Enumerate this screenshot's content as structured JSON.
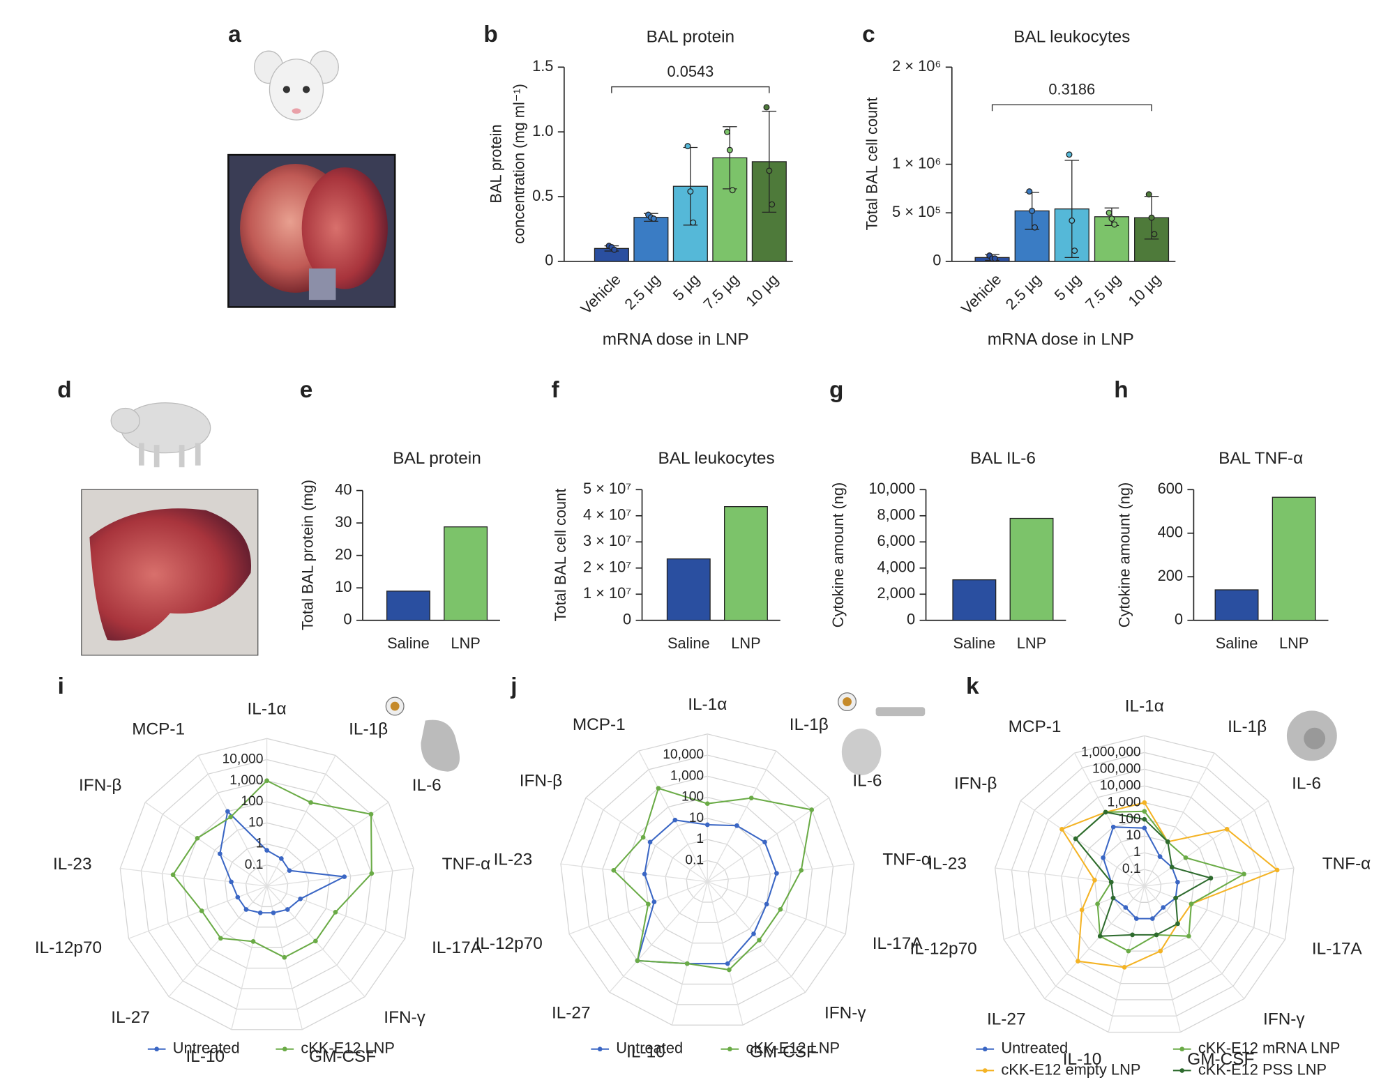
{
  "panel_letters": [
    "a",
    "b",
    "c",
    "d",
    "e",
    "f",
    "g",
    "h",
    "i",
    "j",
    "k"
  ],
  "chart_data": [
    {
      "type": "bar",
      "title": "BAL protein",
      "y_label": [
        "BAL protein",
        "concentration (mg ml⁻¹)"
      ],
      "x_label": "mRNA dose in LNP",
      "categories": [
        "Vehicle",
        "2.5 µg",
        "5 µg",
        "7.5 µg",
        "10 µg"
      ],
      "colors": [
        "#2a4fa0",
        "#3a7cc4",
        "#55b8d8",
        "#7cc36a",
        "#4e7a3a"
      ],
      "values": [
        0.1,
        0.34,
        0.58,
        0.8,
        0.77
      ],
      "errors": [
        0.02,
        0.03,
        0.3,
        0.24,
        0.39
      ],
      "points": [
        [
          0.12,
          0.11,
          0.09
        ],
        [
          0.36,
          0.34,
          0.33
        ],
        [
          0.89,
          0.54,
          0.3
        ],
        [
          1.0,
          0.86,
          0.55
        ],
        [
          1.19,
          0.7,
          0.44
        ]
      ],
      "annotation": "0.0543",
      "ylim": [
        0,
        1.5
      ],
      "yticks": [
        0,
        0.5,
        {
          "value": 1,
          "label": "1.0"
        },
        1.5
      ]
    },
    {
      "type": "bar",
      "title": "BAL leukocytes",
      "y_label": "Total BAL cell count",
      "x_label": "mRNA dose in LNP",
      "categories": [
        "Vehicle",
        "2.5 µg",
        "5 µg",
        "7.5 µg",
        "10 µg"
      ],
      "colors": [
        "#2a4fa0",
        "#3a7cc4",
        "#55b8d8",
        "#7cc36a",
        "#4e7a3a"
      ],
      "values": [
        40000,
        520000,
        540000,
        460000,
        450000
      ],
      "errors": [
        30000,
        190000,
        500000,
        90000,
        220000
      ],
      "points": [
        [
          60000,
          30000,
          30000
        ],
        [
          720000,
          520000,
          350000
        ],
        [
          1100000,
          420000,
          110000
        ],
        [
          500000,
          440000,
          380000
        ],
        [
          690000,
          450000,
          280000
        ]
      ],
      "annotation": "0.3186",
      "ylim": [
        0,
        2000000
      ],
      "yticks": [
        0,
        {
          "value": 500000,
          "label": "5 × 10⁵"
        },
        {
          "value": 1000000,
          "label": "1 × 10⁶"
        },
        {
          "value": 2000000,
          "label": "2 × 10⁶"
        }
      ]
    },
    {
      "type": "bar",
      "title": "BAL protein",
      "y_label": "Total BAL protein (mg)",
      "categories": [
        "Saline",
        "LNP"
      ],
      "colors": [
        "#2a4fa0",
        "#7cc36a"
      ],
      "values": [
        9,
        28.8
      ],
      "ylim": [
        0,
        40
      ],
      "yticks": [
        0,
        10,
        20,
        30,
        40
      ]
    },
    {
      "type": "bar",
      "title": "BAL leukocytes",
      "y_label": "Total BAL cell count",
      "categories": [
        "Saline",
        "LNP"
      ],
      "colors": [
        "#2a4fa0",
        "#7cc36a"
      ],
      "values": [
        23500000,
        43500000
      ],
      "ylim": [
        0,
        50000000
      ],
      "yticks": [
        0,
        {
          "value": 10000000,
          "label": "1 × 10⁷"
        },
        {
          "value": 20000000,
          "label": "2 × 10⁷"
        },
        {
          "value": 30000000,
          "label": "3 × 10⁷"
        },
        {
          "value": 40000000,
          "label": "4 × 10⁷"
        },
        {
          "value": 50000000,
          "label": "5 × 10⁷"
        }
      ]
    },
    {
      "type": "bar",
      "title": "BAL IL-6",
      "y_label": "Cytokine amount (ng)",
      "categories": [
        "Saline",
        "LNP"
      ],
      "colors": [
        "#2a4fa0",
        "#7cc36a"
      ],
      "values": [
        3100,
        7800
      ],
      "ylim": [
        0,
        10000
      ],
      "yticks": [
        0,
        {
          "value": 2000,
          "label": "2,000"
        },
        {
          "value": 4000,
          "label": "4,000"
        },
        {
          "value": 6000,
          "label": "6,000"
        },
        {
          "value": 8000,
          "label": "8,000"
        },
        {
          "value": 10000,
          "label": "10,000"
        }
      ]
    },
    {
      "type": "bar",
      "title": "BAL TNF-α",
      "y_label": "Cytokine amount (ng)",
      "categories": [
        "Saline",
        "LNP"
      ],
      "colors": [
        "#2a4fa0",
        "#7cc36a"
      ],
      "values": [
        140,
        565
      ],
      "ylim": [
        0,
        600
      ],
      "yticks": [
        0,
        200,
        400,
        600
      ]
    },
    {
      "type": "radar",
      "log_scale": true,
      "categories": [
        "IL-1α",
        "IL-1β",
        "IL-6",
        "TNF-α",
        "IL-17A",
        "IFN-γ",
        "GM-CSF",
        "IL-10",
        "IL-27",
        "IL-12p70",
        "IL-23",
        "IFN-β",
        "MCP-1"
      ],
      "rlim": [
        0.01,
        100000
      ],
      "rticks": [
        0.1,
        1,
        10,
        100,
        {
          "value": 1000,
          "label": "1,000"
        },
        {
          "value": 10000,
          "label": "10,000"
        }
      ],
      "series": [
        {
          "name": "Untreated",
          "color": "#3a66c4",
          "values": [
            0.5,
            0.3,
            0.2,
            50,
            0.5,
            0.3,
            0.2,
            0.2,
            0.3,
            0.3,
            0.5,
            5,
            100
          ]
        },
        {
          "name": "cKK-E12 LNP",
          "color": "#6aab46",
          "values": [
            1000,
            300,
            10000,
            1000,
            30,
            30,
            30,
            5,
            20,
            20,
            300,
            100,
            50
          ]
        }
      ]
    },
    {
      "type": "radar",
      "log_scale": true,
      "categories": [
        "IL-1α",
        "IL-1β",
        "IL-6",
        "TNF-α",
        "IL-17A",
        "IFN-γ",
        "GM-CSF",
        "IL-10",
        "IL-27",
        "IL-12p70",
        "IL-23",
        "IFN-β",
        "MCP-1"
      ],
      "rlim": [
        0.01,
        100000
      ],
      "rticks": [
        0.1,
        1,
        10,
        100,
        {
          "value": 1000,
          "label": "1,000"
        },
        {
          "value": 10000,
          "label": "10,000"
        }
      ],
      "series": [
        {
          "name": "Untreated",
          "color": "#3a66c4",
          "values": [
            5,
            10,
            20,
            20,
            10,
            20,
            100,
            100,
            1000,
            5,
            10,
            20,
            20
          ]
        },
        {
          "name": "cKK-E12 LNP",
          "color": "#6aab46",
          "values": [
            50,
            300,
            10000,
            300,
            50,
            50,
            200,
            100,
            1000,
            10,
            300,
            50,
            1000
          ]
        }
      ]
    },
    {
      "type": "radar",
      "log_scale": true,
      "categories": [
        "IL-1α",
        "IL-1β",
        "IL-6",
        "TNF-α",
        "IL-17A",
        "IFN-γ",
        "GM-CSF",
        "IL-10",
        "IL-27",
        "IL-12p70",
        "IL-23",
        "IFN-β",
        "MCP-1"
      ],
      "rlim": [
        0.01,
        10000000
      ],
      "rticks": [
        0.1,
        1,
        10,
        100,
        {
          "value": 1000,
          "label": "1,000"
        },
        {
          "value": 10000,
          "label": "10,000"
        },
        {
          "value": 100000,
          "label": "100,000"
        },
        {
          "value": 1000000,
          "label": "1,000,000"
        }
      ],
      "series": [
        {
          "name": "Untreated",
          "color": "#3a66c4",
          "values": [
            30,
            1,
            1,
            1,
            1,
            0.5,
            1,
            1,
            0.5,
            1,
            1,
            10,
            100
          ]
        },
        {
          "name": "cKK-E12 empty LNP",
          "color": "#f4b324",
          "values": [
            1000,
            10,
            10000,
            1000000,
            10,
            10,
            100,
            1000,
            10000,
            100,
            10,
            10000,
            1000
          ]
        },
        {
          "name": "cKK-E12 mRNA LNP",
          "color": "#6aab46",
          "values": [
            300,
            10,
            10,
            10000,
            10,
            100,
            10,
            100,
            100,
            10,
            1,
            1000,
            1000
          ]
        },
        {
          "name": "cKK-E12 PSS LNP",
          "color": "#2e6b2e",
          "values": [
            100,
            10,
            1,
            100,
            1,
            10,
            10,
            10,
            100,
            1,
            1,
            1000,
            1000
          ]
        }
      ]
    }
  ]
}
